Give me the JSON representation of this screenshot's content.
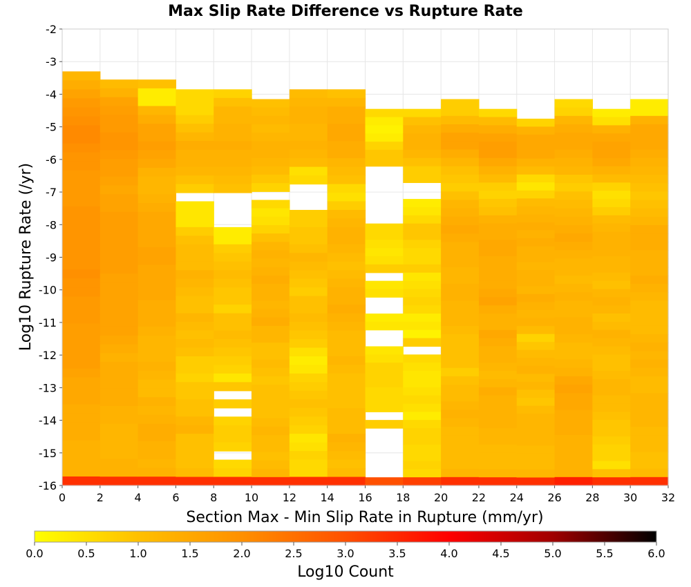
{
  "chart_data": {
    "type": "heatmap",
    "title": "Max Slip Rate Difference vs Rupture Rate",
    "xlabel": "Section Max - Min Slip Rate in Rupture (mm/yr)",
    "ylabel": "Log10 Rupture Rate (/yr)",
    "xlim": [
      0,
      32
    ],
    "ylim": [
      -16,
      -2
    ],
    "x_ticks": [
      "0",
      "2",
      "4",
      "6",
      "8",
      "10",
      "12",
      "14",
      "16",
      "18",
      "20",
      "22",
      "24",
      "26",
      "28",
      "30",
      "32"
    ],
    "y_ticks": [
      "-2",
      "-3",
      "-4",
      "-5",
      "-6",
      "-7",
      "-8",
      "-9",
      "-10",
      "-11",
      "-12",
      "-13",
      "-14",
      "-15",
      "-16"
    ],
    "x_bin_width": 2,
    "y_bin_height": 0.28,
    "grid": true,
    "colorbar": {
      "label": "Log10 Count",
      "range": [
        0,
        6
      ],
      "ticks": [
        "0.0",
        "0.5",
        "1.0",
        "1.5",
        "2.0",
        "2.5",
        "3.0",
        "3.5",
        "4.0",
        "4.5",
        "5.0",
        "5.5",
        "6.0"
      ],
      "colors": [
        "#ffff00",
        "#ffc000",
        "#ff9000",
        "#ff5000",
        "#ff0000",
        "#a00000",
        "#000000"
      ]
    },
    "columns": [
      {
        "x": 1,
        "top": -3.3,
        "values": [
          1.2,
          1.4,
          1.6,
          1.8,
          1.9,
          2.0,
          2.1,
          2.1,
          2.0,
          1.9,
          1.9,
          1.8,
          1.8,
          1.8,
          1.8,
          1.9,
          1.9,
          1.9,
          1.9,
          1.9,
          1.9,
          1.9,
          2.0,
          1.9,
          1.9,
          1.8,
          1.8,
          1.8,
          1.7,
          1.7,
          1.7,
          1.7,
          1.7,
          1.6,
          1.5,
          1.5,
          1.5,
          1.4,
          1.4,
          1.4,
          1.4,
          1.3,
          1.3,
          1.3,
          1.3,
          3.4
        ]
      },
      {
        "x": 3,
        "top": -3.55,
        "values": [
          1.1,
          1.3,
          1.6,
          1.7,
          1.8,
          1.8,
          1.9,
          1.9,
          1.8,
          1.7,
          1.7,
          1.6,
          1.5,
          1.6,
          1.6,
          1.7,
          1.7,
          1.7,
          1.7,
          1.7,
          1.7,
          1.7,
          1.6,
          1.6,
          1.6,
          1.6,
          1.6,
          1.6,
          1.6,
          1.5,
          1.4,
          1.3,
          1.4,
          1.4,
          1.4,
          1.4,
          1.4,
          1.3,
          1.3,
          1.2,
          1.2,
          1.2,
          1.2,
          1.3,
          1.3,
          3.4
        ]
      },
      {
        "x": 5,
        "top": -3.55,
        "values": [
          1.0,
          0.3,
          0.3,
          1.2,
          1.4,
          1.6,
          1.6,
          1.7,
          1.6,
          1.5,
          1.3,
          1.2,
          1.2,
          1.3,
          1.4,
          1.5,
          1.5,
          1.5,
          1.5,
          1.6,
          1.6,
          1.5,
          1.5,
          1.5,
          1.5,
          1.4,
          1.4,
          1.4,
          1.3,
          1.2,
          1.2,
          1.2,
          1.3,
          1.2,
          1.1,
          1.1,
          1.3,
          1.2,
          1.3,
          1.4,
          1.4,
          1.3,
          1.3,
          1.2,
          1.3,
          3.4
        ]
      },
      {
        "x": 7,
        "top": -3.85,
        "values": [
          0.6,
          0.6,
          0.6,
          0.8,
          1.0,
          1.2,
          1.4,
          1.3,
          1.3,
          1.2,
          1.0,
          0.8,
          null,
          0.4,
          0.4,
          0.4,
          0.8,
          1.0,
          1.1,
          1.1,
          1.1,
          1.3,
          1.2,
          1.1,
          1.0,
          1.0,
          1.2,
          1.1,
          1.0,
          1.1,
          1.0,
          0.8,
          0.8,
          0.7,
          0.9,
          0.9,
          1.0,
          1.0,
          1.2,
          1.3,
          1.0,
          1.0,
          1.0,
          1.0,
          1.1,
          3.4
        ]
      },
      {
        "x": 9,
        "top": -3.85,
        "values": [
          0.7,
          1.0,
          1.2,
          1.2,
          1.3,
          1.3,
          1.4,
          1.3,
          1.3,
          1.2,
          1.1,
          1.0,
          null,
          null,
          null,
          null,
          0.3,
          0.3,
          0.8,
          0.9,
          1.0,
          1.1,
          1.0,
          0.9,
          0.9,
          0.7,
          1.0,
          1.0,
          1.1,
          1.0,
          0.9,
          0.8,
          0.7,
          0.4,
          0.9,
          null,
          0.8,
          null,
          0.7,
          0.8,
          0.8,
          0.7,
          null,
          0.6,
          0.7,
          3.4
        ]
      },
      {
        "x": 11,
        "top": -4.15,
        "values": [
          1.0,
          1.1,
          1.2,
          1.1,
          1.2,
          1.3,
          1.3,
          1.2,
          1.1,
          0.9,
          0.7,
          null,
          0.6,
          0.4,
          0.5,
          0.7,
          1.0,
          1.2,
          1.3,
          1.2,
          1.3,
          1.4,
          1.3,
          1.3,
          1.2,
          1.3,
          1.4,
          1.2,
          1.2,
          1.0,
          1.0,
          1.1,
          1.0,
          0.9,
          1.0,
          1.0,
          1.0,
          1.0,
          1.1,
          1.2,
          1.1,
          1.1,
          1.0,
          1.1,
          1.2,
          3.4
        ]
      },
      {
        "x": 13,
        "top": -3.85,
        "values": [
          1.1,
          1.2,
          1.3,
          1.3,
          1.2,
          1.2,
          1.3,
          1.2,
          1.1,
          0.5,
          0.6,
          null,
          null,
          null,
          0.8,
          0.8,
          0.9,
          0.9,
          1.0,
          1.2,
          1.1,
          1.0,
          0.9,
          0.8,
          1.0,
          1.0,
          1.1,
          1.0,
          0.9,
          0.8,
          0.5,
          0.3,
          0.4,
          0.7,
          0.8,
          0.9,
          1.0,
          0.9,
          0.8,
          0.7,
          0.4,
          0.5,
          0.7,
          0.6,
          0.6,
          3.4
        ]
      },
      {
        "x": 15,
        "top": -3.85,
        "values": [
          1.0,
          1.2,
          1.4,
          1.4,
          1.5,
          1.5,
          1.4,
          1.4,
          1.2,
          1.1,
          1.0,
          0.6,
          0.5,
          0.8,
          1.1,
          1.2,
          1.3,
          1.3,
          1.2,
          1.1,
          1.0,
          1.1,
          1.2,
          1.3,
          1.3,
          1.4,
          1.3,
          1.2,
          1.1,
          1.1,
          1.1,
          1.2,
          1.1,
          1.0,
          1.0,
          1.0,
          1.0,
          1.1,
          1.1,
          1.1,
          1.3,
          1.2,
          1.1,
          1.0,
          1.1,
          3.4
        ]
      },
      {
        "x": 17,
        "top": -4.45,
        "values": [
          0.6,
          0.3,
          0.2,
          0.3,
          0.7,
          0.9,
          0.9,
          null,
          null,
          null,
          null,
          null,
          null,
          null,
          0.6,
          0.6,
          0.5,
          0.4,
          0.5,
          0.8,
          null,
          0.4,
          0.5,
          null,
          null,
          0.3,
          0.4,
          null,
          null,
          0.4,
          0.5,
          0.7,
          0.7,
          0.7,
          0.6,
          0.6,
          0.6,
          null,
          0.8,
          null,
          null,
          null,
          null,
          null,
          null,
          3.0
        ]
      },
      {
        "x": 19,
        "top": -4.45,
        "values": [
          0.6,
          1.0,
          1.2,
          1.3,
          1.3,
          1.2,
          1.0,
          0.8,
          0.8,
          null,
          null,
          0.3,
          0.4,
          0.6,
          0.9,
          0.9,
          0.7,
          0.6,
          0.6,
          0.8,
          0.4,
          0.5,
          0.6,
          0.7,
          0.6,
          0.3,
          0.4,
          0.2,
          0.8,
          null,
          0.6,
          0.5,
          0.4,
          0.4,
          0.5,
          0.6,
          0.5,
          0.3,
          0.6,
          0.7,
          0.7,
          0.6,
          0.6,
          0.7,
          0.6,
          3.2
        ]
      },
      {
        "x": 21,
        "top": -4.15,
        "values": [
          0.8,
          0.8,
          1.1,
          1.4,
          1.6,
          1.6,
          1.4,
          1.2,
          1.0,
          0.9,
          0.8,
          1.0,
          1.2,
          1.3,
          1.4,
          1.5,
          1.4,
          1.3,
          1.3,
          1.3,
          1.2,
          1.2,
          1.3,
          1.3,
          1.2,
          1.2,
          1.2,
          1.1,
          1.0,
          1.0,
          1.0,
          1.0,
          0.8,
          1.0,
          1.1,
          1.1,
          1.2,
          1.3,
          1.2,
          1.1,
          1.1,
          1.1,
          1.1,
          1.1,
          1.2,
          3.4
        ]
      },
      {
        "x": 23,
        "top": -4.45,
        "values": [
          0.6,
          1.1,
          1.4,
          1.6,
          1.7,
          1.7,
          1.5,
          1.3,
          1.1,
          0.8,
          0.7,
          0.9,
          1.0,
          1.3,
          1.4,
          1.4,
          1.5,
          1.5,
          1.4,
          1.4,
          1.4,
          1.4,
          1.5,
          1.6,
          1.4,
          1.3,
          1.3,
          1.5,
          1.4,
          1.3,
          1.3,
          1.2,
          1.1,
          1.2,
          1.4,
          1.3,
          1.3,
          1.3,
          1.3,
          1.2,
          1.2,
          1.1,
          1.1,
          1.1,
          1.2,
          3.4
        ]
      },
      {
        "x": 25,
        "top": -4.75,
        "values": [
          0.7,
          1.3,
          1.5,
          1.5,
          1.5,
          1.3,
          1.1,
          0.6,
          0.4,
          0.7,
          1.1,
          1.2,
          1.3,
          1.4,
          1.3,
          1.4,
          1.3,
          1.3,
          1.2,
          1.3,
          1.3,
          1.2,
          1.4,
          1.3,
          1.2,
          1.3,
          1.1,
          0.7,
          0.9,
          1.1,
          1.2,
          1.3,
          1.1,
          1.2,
          1.0,
          0.9,
          1.1,
          1.2,
          1.2,
          1.2,
          1.2,
          1.1,
          1.1,
          1.1,
          1.2,
          3.4
        ]
      },
      {
        "x": 27,
        "top": -4.15,
        "values": [
          0.6,
          0.7,
          1.2,
          1.4,
          1.5,
          1.5,
          1.4,
          1.3,
          1.2,
          0.9,
          0.8,
          1.0,
          1.1,
          1.2,
          1.3,
          1.4,
          1.5,
          1.4,
          1.3,
          1.2,
          1.2,
          1.1,
          1.2,
          1.3,
          1.2,
          1.2,
          1.3,
          1.3,
          1.2,
          1.1,
          1.1,
          1.2,
          1.3,
          1.5,
          1.6,
          1.5,
          1.5,
          1.4,
          1.4,
          1.4,
          1.3,
          1.3,
          1.3,
          1.3,
          1.3,
          3.6
        ]
      },
      {
        "x": 29,
        "top": -4.45,
        "values": [
          0.3,
          0.5,
          1.3,
          1.5,
          1.6,
          1.6,
          1.5,
          1.3,
          1.1,
          0.7,
          0.5,
          0.6,
          0.8,
          1.1,
          1.2,
          1.3,
          1.3,
          1.3,
          1.2,
          1.2,
          1.1,
          1.0,
          1.2,
          1.3,
          1.2,
          1.0,
          1.1,
          1.3,
          1.2,
          1.1,
          1.0,
          1.0,
          1.1,
          1.2,
          1.2,
          1.1,
          1.1,
          1.0,
          0.9,
          0.9,
          0.8,
          0.7,
          0.7,
          0.5,
          1.0,
          3.4
        ]
      },
      {
        "x": 31,
        "top": -4.15,
        "values": [
          0.3,
          0.3,
          1.3,
          1.5,
          1.5,
          1.5,
          1.4,
          1.3,
          1.2,
          1.1,
          1.0,
          0.9,
          1.0,
          1.1,
          1.2,
          1.4,
          1.4,
          1.4,
          1.3,
          1.3,
          1.3,
          1.4,
          1.3,
          1.2,
          1.1,
          1.1,
          1.1,
          1.1,
          1.2,
          1.3,
          1.2,
          1.3,
          1.2,
          1.1,
          1.1,
          1.2,
          1.2,
          1.2,
          1.2,
          1.1,
          1.1,
          1.1,
          1.0,
          1.0,
          1.1,
          3.4
        ]
      }
    ]
  }
}
